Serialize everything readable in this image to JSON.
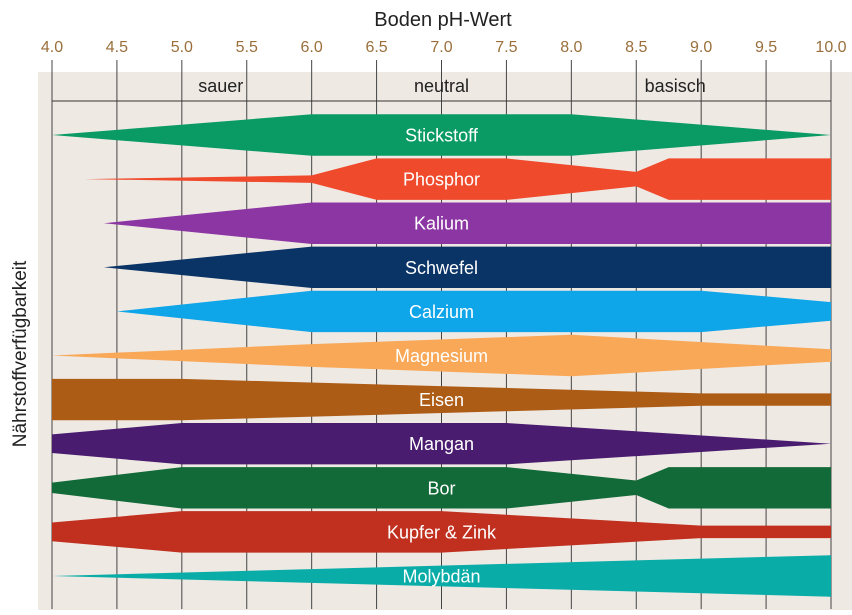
{
  "chart_data": {
    "type": "band",
    "title": "Boden pH-Wert",
    "ylabel": "Nährstoffverfügbarkeit",
    "xlim": [
      4.0,
      10.0
    ],
    "x_ticks": [
      "4.0",
      "4.5",
      "5.0",
      "5.5",
      "6.0",
      "6.5",
      "7.0",
      "7.5",
      "8.0",
      "8.5",
      "9.0",
      "9.5",
      "10.0"
    ],
    "regions": [
      {
        "label": "sauer",
        "ph": 5.3
      },
      {
        "label": "neutral",
        "ph": 7.0
      },
      {
        "label": "basisch",
        "ph": 8.8
      }
    ],
    "series": [
      {
        "name": "Stickstoff",
        "color": "#0a9b64",
        "profile": [
          [
            4.0,
            0
          ],
          [
            6.0,
            1
          ],
          [
            8.0,
            1
          ],
          [
            10.0,
            0
          ]
        ]
      },
      {
        "name": "Phosphor",
        "color": "#f04a2c",
        "profile": [
          [
            4.25,
            0
          ],
          [
            6.0,
            0.18
          ],
          [
            6.5,
            1
          ],
          [
            7.5,
            1
          ],
          [
            8.5,
            0.35
          ],
          [
            8.75,
            1
          ],
          [
            10.0,
            1
          ]
        ]
      },
      {
        "name": "Kalium",
        "color": "#8c36a3",
        "profile": [
          [
            4.4,
            0
          ],
          [
            6.0,
            1
          ],
          [
            10.0,
            1
          ]
        ]
      },
      {
        "name": "Schwefel",
        "color": "#0b3466",
        "profile": [
          [
            4.4,
            0
          ],
          [
            6.0,
            1
          ],
          [
            10.0,
            1
          ]
        ]
      },
      {
        "name": "Calzium",
        "color": "#0fa5e9",
        "profile": [
          [
            4.5,
            0
          ],
          [
            6.0,
            1
          ],
          [
            9.0,
            1
          ],
          [
            10.0,
            0.45
          ]
        ]
      },
      {
        "name": "Magnesium",
        "color": "#f8a857",
        "profile": [
          [
            4.0,
            0
          ],
          [
            6.0,
            0.55
          ],
          [
            8.0,
            1
          ],
          [
            10.0,
            0.3
          ]
        ]
      },
      {
        "name": "Eisen",
        "color": "#ad5c16",
        "profile": [
          [
            4.0,
            1
          ],
          [
            5.0,
            1
          ],
          [
            9.0,
            0.3
          ],
          [
            10.0,
            0.3
          ]
        ]
      },
      {
        "name": "Mangan",
        "color": "#4a1c70",
        "profile": [
          [
            4.0,
            0.45
          ],
          [
            5.0,
            1
          ],
          [
            7.5,
            1
          ],
          [
            10.0,
            0
          ]
        ]
      },
      {
        "name": "Bor",
        "color": "#126a38",
        "profile": [
          [
            4.0,
            0.25
          ],
          [
            5.0,
            1
          ],
          [
            7.5,
            1
          ],
          [
            8.5,
            0.35
          ],
          [
            8.75,
            1
          ],
          [
            10.0,
            1
          ]
        ]
      },
      {
        "name": "Kupfer & Zink",
        "color": "#c1301f",
        "profile": [
          [
            4.0,
            0.45
          ],
          [
            5.0,
            1
          ],
          [
            7.0,
            1
          ],
          [
            9.0,
            0.3
          ],
          [
            10.0,
            0.3
          ]
        ]
      },
      {
        "name": "Molybdän",
        "color": "#0aaca8",
        "profile": [
          [
            4.0,
            0
          ],
          [
            10.0,
            1
          ]
        ]
      }
    ]
  }
}
